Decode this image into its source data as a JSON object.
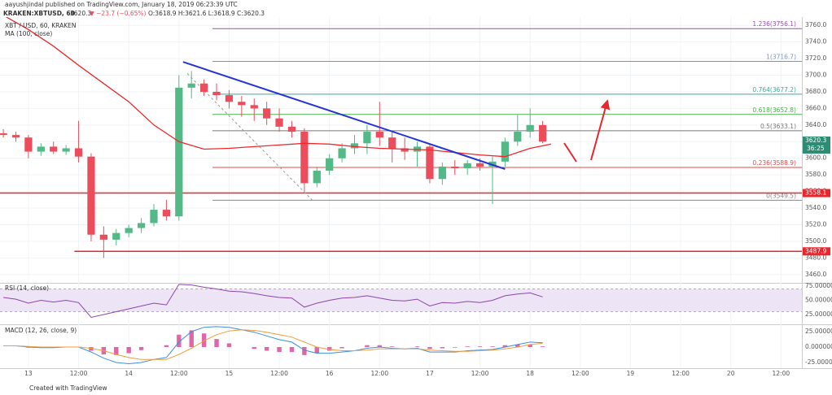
{
  "header": {
    "byline": "aayushjindal published on TradingView.com, January 18, 2019 06:23:39 UTC",
    "symbol": "KRAKEN:XBTUSD, 60",
    "price": "3620.3",
    "change": "▼ −23.7 (−0.65%)",
    "ohlc": "O:3618.9 H:3621.6 L:3618.9 C:3620.3"
  },
  "chart_data": [
    {
      "type": "candlestick",
      "title": "XBT / USD, 60, KRAKEN",
      "x": [
        -6,
        -3,
        0,
        3,
        6,
        9,
        12,
        15,
        18,
        21,
        24,
        27,
        30,
        33,
        36,
        39,
        42,
        45,
        48,
        51,
        54,
        57,
        60,
        63,
        66,
        69,
        72,
        75,
        78,
        81,
        84,
        87,
        90,
        93,
        96,
        99,
        102,
        105,
        108,
        111,
        114,
        117,
        120,
        123
      ],
      "open": [
        3630,
        3628,
        3625,
        3608,
        3614,
        3608,
        3612,
        3602,
        3508,
        3502,
        3510,
        3516,
        3522,
        3538,
        3530,
        3685,
        3690,
        3680,
        3676,
        3668,
        3664,
        3660,
        3648,
        3638,
        3632,
        3570,
        3585,
        3600,
        3612,
        3618,
        3632,
        3625,
        3612,
        3608,
        3614,
        3575,
        3590,
        3588,
        3594,
        3590,
        3596,
        3620,
        3632,
        3640
      ],
      "high": [
        3635,
        3632,
        3628,
        3618,
        3620,
        3616,
        3645,
        3606,
        3518,
        3515,
        3520,
        3528,
        3545,
        3550,
        3700,
        3705,
        3695,
        3690,
        3682,
        3675,
        3672,
        3668,
        3660,
        3645,
        3636,
        3590,
        3605,
        3618,
        3628,
        3640,
        3668,
        3632,
        3625,
        3620,
        3618,
        3595,
        3598,
        3598,
        3600,
        3602,
        3625,
        3652,
        3660,
        3645
      ],
      "low": [
        3625,
        3620,
        3600,
        3603,
        3605,
        3604,
        3595,
        3500,
        3480,
        3495,
        3505,
        3510,
        3518,
        3525,
        3525,
        3672,
        3675,
        3670,
        3660,
        3650,
        3645,
        3640,
        3632,
        3625,
        3560,
        3565,
        3580,
        3595,
        3605,
        3605,
        3615,
        3595,
        3598,
        3590,
        3570,
        3568,
        3580,
        3580,
        3585,
        3545,
        3590,
        3615,
        3625,
        3618
      ],
      "close": [
        3628,
        3625,
        3608,
        3614,
        3608,
        3612,
        3602,
        3508,
        3502,
        3510,
        3516,
        3522,
        3538,
        3530,
        3685,
        3690,
        3680,
        3676,
        3668,
        3664,
        3660,
        3648,
        3638,
        3632,
        3570,
        3585,
        3600,
        3612,
        3618,
        3632,
        3625,
        3612,
        3608,
        3614,
        3575,
        3590,
        3588,
        3594,
        3590,
        3596,
        3620,
        3632,
        3640,
        3620
      ],
      "up_color": "#53b987",
      "down_color": "#eb4d5c",
      "ma": {
        "name": "MA (100, close)",
        "color": "#f2262a",
        "x": [
          -7,
          0,
          6,
          12,
          18,
          24,
          30,
          36,
          42,
          48,
          54,
          60,
          66,
          72,
          78,
          84,
          90,
          96,
          102,
          108,
          114,
          120,
          125
        ],
        "values": [
          3775,
          3755,
          3735,
          3712,
          3690,
          3668,
          3640,
          3620,
          3611,
          3612,
          3614,
          3616,
          3618,
          3617,
          3614,
          3612,
          3611,
          3610,
          3607,
          3604,
          3602,
          3612,
          3617
        ]
      },
      "fib": [
        {
          "label": "1.236(3756.1)",
          "value": 3756.1,
          "color": "#9c4fb0"
        },
        {
          "label": "1(3716.7)",
          "value": 3716.7,
          "color": "#7f93b8"
        },
        {
          "label": "0.764(3677.2)",
          "value": 3677.2,
          "color": "#3aa7a0"
        },
        {
          "label": "0.618(3652.8)",
          "value": 3652.8,
          "color": "#4caf50"
        },
        {
          "label": "0.5(3633.1)",
          "value": 3633.1,
          "color": "#777777"
        },
        {
          "label": "0.236(3588.9)",
          "value": 3588.9,
          "color": "#e04b4b"
        },
        {
          "label": "0(3549.5)",
          "value": 3549.5,
          "color": "#888888"
        }
      ],
      "fib_from": 44,
      "hlines": [
        {
          "value": 3558.1,
          "from": -7
        },
        {
          "value": 3487.9,
          "from": 11
        }
      ],
      "hline_color": "#e8262c",
      "trendline": {
        "x": [
          37,
          114
        ],
        "y": [
          3716,
          3587
        ],
        "color": "#2334d8"
      },
      "swing": {
        "x": [
          38,
          68
        ],
        "y": [
          3702,
          3549
        ],
        "color": "#999999"
      },
      "last": 3620.3,
      "countdown": "36:25",
      "last_color": "#2e8b74",
      "xlim": [
        -6.8,
        185
      ],
      "ylim": [
        3450,
        3770
      ],
      "xticks": [
        {
          "value": 0,
          "label": "13"
        },
        {
          "value": 12,
          "label": "12:00"
        },
        {
          "value": 24,
          "label": "14"
        },
        {
          "value": 36,
          "label": "12:00"
        },
        {
          "value": 48,
          "label": "15"
        },
        {
          "value": 60,
          "label": "12:00"
        },
        {
          "value": 72,
          "label": "16"
        },
        {
          "value": 84,
          "label": "12:00"
        },
        {
          "value": 96,
          "label": "17"
        },
        {
          "value": 108,
          "label": "12:00"
        },
        {
          "value": 120,
          "label": "18"
        },
        {
          "value": 132,
          "label": "12:00"
        },
        {
          "value": 144,
          "label": "19"
        },
        {
          "value": 156,
          "label": "12:00"
        },
        {
          "value": 168,
          "label": "20"
        },
        {
          "value": 180,
          "label": "12:00"
        }
      ],
      "yticks": [
        {
          "value": 3460,
          "label": "3460.0"
        },
        {
          "value": 3480,
          "label": "3480.0"
        },
        {
          "value": 3500,
          "label": "3500.0"
        },
        {
          "value": 3520,
          "label": "3520.0"
        },
        {
          "value": 3540,
          "label": "3540.0"
        },
        {
          "value": 3560,
          "label": "3560.0"
        },
        {
          "value": 3580,
          "label": "3580.0"
        },
        {
          "value": 3600,
          "label": "3600.0"
        },
        {
          "value": 3620,
          "label": "3620.0"
        },
        {
          "value": 3640,
          "label": "3640.0"
        },
        {
          "value": 3660,
          "label": "3660.0"
        },
        {
          "value": 3680,
          "label": "3680.0"
        },
        {
          "value": 3700,
          "label": "3700.0"
        },
        {
          "value": 3720,
          "label": "3720.0"
        },
        {
          "value": 3740,
          "label": "3740.0"
        },
        {
          "value": 3760,
          "label": "3760.0"
        }
      ],
      "grid": true
    },
    {
      "type": "line",
      "title": "RSI (14, close)",
      "color": "#8e44ad",
      "x": [
        -6,
        -3,
        0,
        3,
        6,
        9,
        12,
        15,
        18,
        21,
        24,
        27,
        30,
        33,
        36,
        39,
        42,
        45,
        48,
        51,
        54,
        57,
        60,
        63,
        66,
        69,
        72,
        75,
        78,
        81,
        84,
        87,
        90,
        93,
        96,
        99,
        102,
        105,
        108,
        111,
        114,
        117,
        120,
        123
      ],
      "values": [
        55,
        52,
        45,
        50,
        47,
        50,
        46,
        20,
        25,
        30,
        35,
        40,
        45,
        42,
        78,
        77,
        73,
        70,
        66,
        65,
        62,
        58,
        55,
        54,
        38,
        45,
        50,
        54,
        55,
        58,
        54,
        50,
        49,
        52,
        40,
        46,
        45,
        48,
        46,
        50,
        58,
        61,
        63,
        56
      ],
      "band": [
        30,
        70
      ],
      "band_color": "#ede4f5",
      "ylim": [
        9.3,
        80.7
      ],
      "yticks": [
        {
          "value": 75,
          "label": "75.000000"
        },
        {
          "value": 50,
          "label": "50.000000"
        },
        {
          "value": 25,
          "label": "25.000000"
        }
      ]
    },
    {
      "type": "macd",
      "title": "MACD (12, 26, close, 9)",
      "x": [
        -6,
        -3,
        0,
        3,
        6,
        9,
        12,
        15,
        18,
        21,
        24,
        27,
        30,
        33,
        36,
        39,
        42,
        45,
        48,
        51,
        54,
        57,
        60,
        63,
        66,
        69,
        72,
        75,
        78,
        81,
        84,
        87,
        90,
        93,
        96,
        99,
        102,
        105,
        108,
        111,
        114,
        117,
        120,
        123
      ],
      "series": [
        {
          "color": "#3d8fdc",
          "values": [
            2,
            2,
            0,
            -1,
            -1,
            0,
            0,
            -8,
            -18,
            -25,
            -27,
            -25,
            -20,
            -17,
            8,
            25,
            32,
            33,
            32,
            28,
            24,
            18,
            12,
            8,
            -5,
            -10,
            -10,
            -8,
            -6,
            -2,
            0,
            -2,
            -3,
            -2,
            -8,
            -8,
            -8,
            -6,
            -5,
            -4,
            0,
            4,
            8,
            7
          ]
        },
        {
          "color": "#f39c3c",
          "values": [
            2,
            2,
            1,
            0,
            0,
            0,
            0,
            -2,
            -6,
            -12,
            -17,
            -20,
            -20,
            -20,
            -12,
            -2,
            10,
            20,
            26,
            28,
            27,
            24,
            20,
            16,
            8,
            0,
            -4,
            -6,
            -6,
            -5,
            -3,
            -3,
            -3,
            -3,
            -5,
            -6,
            -7,
            -7,
            -6,
            -5,
            -3,
            0,
            4,
            6
          ]
        }
      ],
      "histogram": [
        0,
        0,
        -1,
        -1,
        -1,
        0,
        0,
        -6,
        -12,
        -13,
        -10,
        -5,
        0,
        3,
        20,
        27,
        22,
        13,
        6,
        0,
        -3,
        -6,
        -8,
        -8,
        -13,
        -10,
        -6,
        -2,
        0,
        3,
        3,
        1,
        0,
        1,
        -3,
        -2,
        -1,
        1,
        1,
        1,
        3,
        4,
        4,
        1
      ],
      "histogram_color": "#e066a8",
      "ylim": [
        -32.9,
        35.5
      ],
      "yticks": [
        {
          "value": 25,
          "label": "25.000000"
        },
        {
          "value": 0,
          "label": "0.000000"
        },
        {
          "value": -25,
          "label": "-25.000000"
        }
      ]
    }
  ],
  "footer": "Created with TradingView"
}
